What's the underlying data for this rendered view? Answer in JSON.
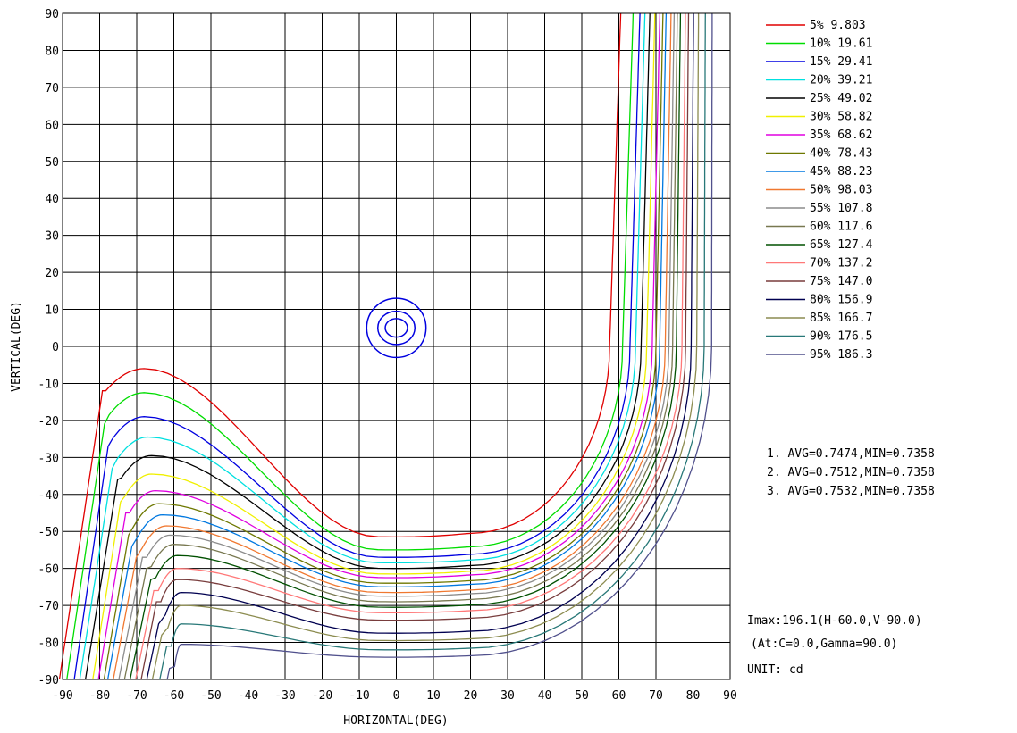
{
  "chart_data": {
    "type": "line",
    "subtype": "isocandela contour",
    "xlabel": "HORIZONTAL(DEG)",
    "ylabel": "VERTICAL(DEG)",
    "xlim": [
      -90,
      90
    ],
    "ylim": [
      -90,
      90
    ],
    "x_ticks": [
      "-90",
      "-80",
      "-70",
      "-60",
      "-50",
      "-40",
      "-30",
      "-20",
      "-10",
      "0",
      "10",
      "20",
      "30",
      "40",
      "50",
      "60",
      "70",
      "80",
      "90"
    ],
    "y_ticks": [
      "90",
      "80",
      "70",
      "60",
      "50",
      "40",
      "30",
      "20",
      "10",
      "0",
      "-10",
      "-20",
      "-30",
      "-40",
      "-50",
      "-60",
      "-70",
      "-80",
      "-90"
    ],
    "grid": true,
    "legend_position": "right",
    "series": [
      {
        "name": "5% 9.803",
        "color": "#e00000",
        "params": {
          "base": -51.5,
          "curv": 0.0025,
          "xs": 57.5,
          "xb": -91,
          "bump_y": -6,
          "bump_x": -68
        }
      },
      {
        "name": "10% 19.61",
        "color": "#00dd00",
        "params": {
          "base": -55,
          "curv": 0.0022,
          "xs": 61,
          "xb": -89,
          "bump_y": -12.5,
          "bump_x": -68
        }
      },
      {
        "name": "15% 29.41",
        "color": "#0000e0",
        "params": {
          "base": -57,
          "curv": 0.0021,
          "xs": 63,
          "xb": -87,
          "bump_y": -19,
          "bump_x": -68
        }
      },
      {
        "name": "20% 39.21",
        "color": "#00e0e0",
        "params": {
          "base": -58.5,
          "curv": 0.002,
          "xs": 64.5,
          "xb": -85.5,
          "bump_y": -24.5,
          "bump_x": -67
        }
      },
      {
        "name": "25% 49.02",
        "color": "#000000",
        "params": {
          "base": -60,
          "curv": 0.002,
          "xs": 66,
          "xb": -84,
          "bump_y": -29.5,
          "bump_x": -66
        }
      },
      {
        "name": "30% 58.82",
        "color": "#f0f000",
        "params": {
          "base": -61.5,
          "curv": 0.0019,
          "xs": 67.5,
          "xb": -82,
          "bump_y": -34.5,
          "bump_x": -66
        }
      },
      {
        "name": "35% 68.62",
        "color": "#e000e0",
        "params": {
          "base": -62.5,
          "curv": 0.0019,
          "xs": 69,
          "xb": -80.5,
          "bump_y": -39,
          "bump_x": -65
        }
      },
      {
        "name": "40% 78.43",
        "color": "#6e7800",
        "params": {
          "base": -64,
          "curv": 0.0018,
          "xs": 70,
          "xb": -79,
          "bump_y": -42.5,
          "bump_x": -64
        }
      },
      {
        "name": "45% 88.23",
        "color": "#0078e0",
        "params": {
          "base": -65,
          "curv": 0.0018,
          "xs": 71,
          "xb": -78,
          "bump_y": -45.5,
          "bump_x": -63
        }
      },
      {
        "name": "50% 98.03",
        "color": "#f07830",
        "params": {
          "base": -66.5,
          "curv": 0.0017,
          "xs": 72.5,
          "xb": -76.5,
          "bump_y": -48.5,
          "bump_x": -62
        }
      },
      {
        "name": "55% 107.8",
        "color": "#8c8c8c",
        "params": {
          "base": -67.5,
          "curv": 0.0017,
          "xs": 73.5,
          "xb": -75,
          "bump_y": -51,
          "bump_x": -61
        }
      },
      {
        "name": "60% 117.6",
        "color": "#787850",
        "params": {
          "base": -69,
          "curv": 0.0016,
          "xs": 74.5,
          "xb": -73.5,
          "bump_y": -53.5,
          "bump_x": -60
        }
      },
      {
        "name": "65% 127.4",
        "color": "#005000",
        "params": {
          "base": -70.5,
          "curv": 0.0016,
          "xs": 75.5,
          "xb": -72,
          "bump_y": -56.5,
          "bump_x": -59
        }
      },
      {
        "name": "70% 137.2",
        "color": "#ff7878",
        "params": {
          "base": -72,
          "curv": 0.0015,
          "xs": 77,
          "xb": -70.5,
          "bump_y": -60,
          "bump_x": -59
        }
      },
      {
        "name": "75% 147.0",
        "color": "#783c3c",
        "params": {
          "base": -74,
          "curv": 0.0014,
          "xs": 78,
          "xb": -69,
          "bump_y": -63,
          "bump_x": -59
        }
      },
      {
        "name": "80% 156.9",
        "color": "#000050",
        "params": {
          "base": -77.5,
          "curv": 0.0013,
          "xs": 79.5,
          "xb": -67.5,
          "bump_y": -66.5,
          "bump_x": -58
        }
      },
      {
        "name": "85% 166.7",
        "color": "#8c8c50",
        "params": {
          "base": -79.5,
          "curv": 0.0012,
          "xs": 81,
          "xb": -66,
          "bump_y": -70,
          "bump_x": -58
        }
      },
      {
        "name": "90% 176.5",
        "color": "#287878",
        "params": {
          "base": -82,
          "curv": 0.0011,
          "xs": 83,
          "xb": -64,
          "bump_y": -75,
          "bump_x": -58
        }
      },
      {
        "name": "95% 186.3",
        "color": "#50508c",
        "params": {
          "base": -84,
          "curv": 0.001,
          "xs": 85,
          "xb": -62,
          "bump_y": -80.5,
          "bump_x": -58
        }
      }
    ],
    "marker_outline": {
      "color": "#0000e0",
      "center": [
        0,
        5
      ],
      "rings": [
        [
          8,
          8
        ],
        [
          5,
          4.5
        ],
        [
          3,
          2.5
        ]
      ]
    },
    "annotations": {
      "stats": [
        "1. AVG=0.7474,MIN=0.7358",
        "2. AVG=0.7512,MIN=0.7358",
        "3. AVG=0.7532,MIN=0.7358"
      ],
      "imax": "Imax:196.1(H-60.0,V-90.0)",
      "at": "(At:C=0.0,Gamma=90.0)",
      "unit": "UNIT: cd"
    }
  }
}
